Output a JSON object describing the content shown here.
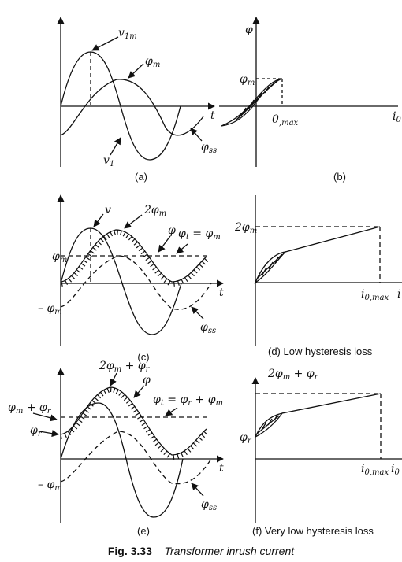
{
  "figure": {
    "number": "Fig. 3.33",
    "title": "Transformer inrush current"
  },
  "panels": {
    "a": {
      "caption": "(a)",
      "v1m": "v",
      "v1m_sub": "1m",
      "phim": "φ",
      "phim_sub": "m",
      "t": "t",
      "v1": "v",
      "v1_sub": "1",
      "phiss": "φ",
      "phiss_sub": "ss"
    },
    "b": {
      "caption": "(b)",
      "phi": "φ",
      "phim": "φ",
      "phim_sub": "m",
      "zero_max": "0",
      "zero_max_sub": ",max",
      "i0": "i",
      "i0_sub": "0"
    },
    "c": {
      "caption": "(c)",
      "v": "v",
      "two_phim": "2φ",
      "two_phim_sub": "m",
      "phi": "φ",
      "phit": "φ",
      "phit_sub": "t",
      "phit_eq": " = φ",
      "phit_eq_sub": "m",
      "phim": "φ",
      "phim_sub": "m",
      "neg_phim": "– φ",
      "neg_phim_sub": "m",
      "t": "t",
      "phiss": "φ",
      "phiss_sub": "ss"
    },
    "d": {
      "caption": "(d) Low hysteresis loss",
      "two_phim": "2φ",
      "two_phim_sub": "m",
      "i0max": "i",
      "i0max_sub": "0,max",
      "i_edge": "i"
    },
    "e": {
      "caption": "(e)",
      "two_phim_phir": "2φ",
      "two_phim_phir_sub": "m",
      "two_phim_phir_plus": " + φ",
      "two_phim_phir_sub2": "r",
      "phi": "φ",
      "phit": "φ",
      "phit_sub": "t",
      "phit_eq": " = φ",
      "phit_eq_sub": "r",
      "phit_eq2": " + φ",
      "phit_eq2_sub": "m",
      "phim_phir": "φ",
      "phim_phir_sub": "m",
      "phim_phir_plus": " + φ",
      "phim_phir_sub2": "r",
      "phir": "φ",
      "phir_sub": "r",
      "neg_phim": "– φ",
      "neg_phim_sub": "m",
      "t": "t",
      "phiss": "φ",
      "phiss_sub": "ss"
    },
    "f": {
      "caption": "(f) Very low hysteresis loss",
      "two_phim_phir": "2φ",
      "two_phim_phir_sub": "m",
      "two_phim_phir_plus": " + φ",
      "two_phim_phir_sub2": "r",
      "phir": "φ",
      "phir_sub": "r",
      "i0max": "i",
      "i0max_sub": "0,max",
      "i0": "i",
      "i0_sub": "0"
    }
  }
}
